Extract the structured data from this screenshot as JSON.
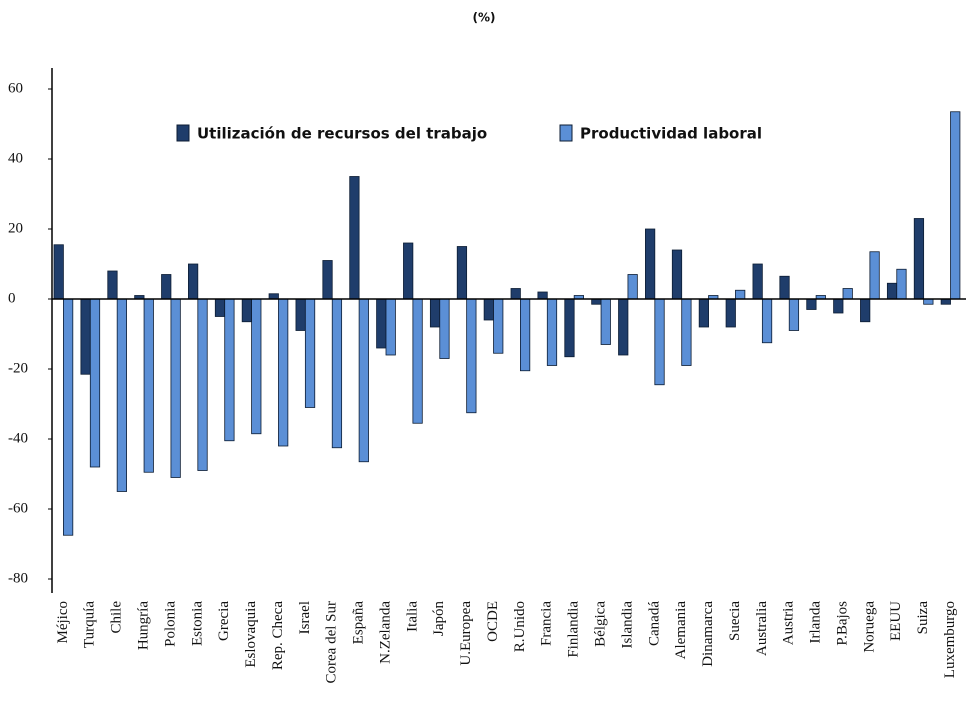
{
  "chart_data": {
    "type": "bar",
    "subtitle": "(%)",
    "categories": [
      "Méjico",
      "Turquía",
      "Chile",
      "Hungría",
      "Polonia",
      "Estonia",
      "Grecia",
      "Eslovaquia",
      "Rep. Checa",
      "Israel",
      "Corea del Sur",
      "España",
      "N.Zelanda",
      "Italia",
      "Japón",
      "U.Europea",
      "OCDE",
      "R.Unido",
      "Francia",
      "Finlandia",
      "Bélgica",
      "Islandia",
      "Canadá",
      "Alemania",
      "Dinamarca",
      "Suecia",
      "Australia",
      "Austria",
      "Irlanda",
      "P.Bajos",
      "Noruega",
      "EEUU",
      "Suiza",
      "Luxemburgo"
    ],
    "series": [
      {
        "name": "Utilización de recursos del trabajo",
        "color": "#1f3d6b",
        "values": [
          15.5,
          -21.5,
          8,
          1,
          7,
          10,
          -5,
          -6.5,
          1.5,
          -9,
          11,
          35,
          -14,
          16,
          -8,
          15,
          -6,
          3,
          2,
          -16.5,
          -1.5,
          -16,
          20,
          14,
          -8,
          -8,
          10,
          6.5,
          -3,
          -4,
          -6.5,
          4.5,
          23,
          -1.5
        ]
      },
      {
        "name": "Productividad laboral",
        "color": "#5b8fd6",
        "values": [
          -67.5,
          -48,
          -55,
          -49.5,
          -51,
          -49,
          -40.5,
          -38.5,
          -42,
          -31,
          -42.5,
          -46.5,
          -16,
          -35.5,
          -17,
          -32.5,
          -15.5,
          -20.5,
          -19,
          1,
          -13,
          7,
          -24.5,
          -19,
          1,
          2.5,
          -12.5,
          -9,
          1,
          3,
          13.5,
          8.5,
          -1.5,
          53.5
        ]
      }
    ],
    "ylim": [
      -84,
      66
    ],
    "yticks": [
      -80,
      -60,
      -40,
      -20,
      0,
      20,
      40,
      60
    ],
    "legend": "top"
  }
}
